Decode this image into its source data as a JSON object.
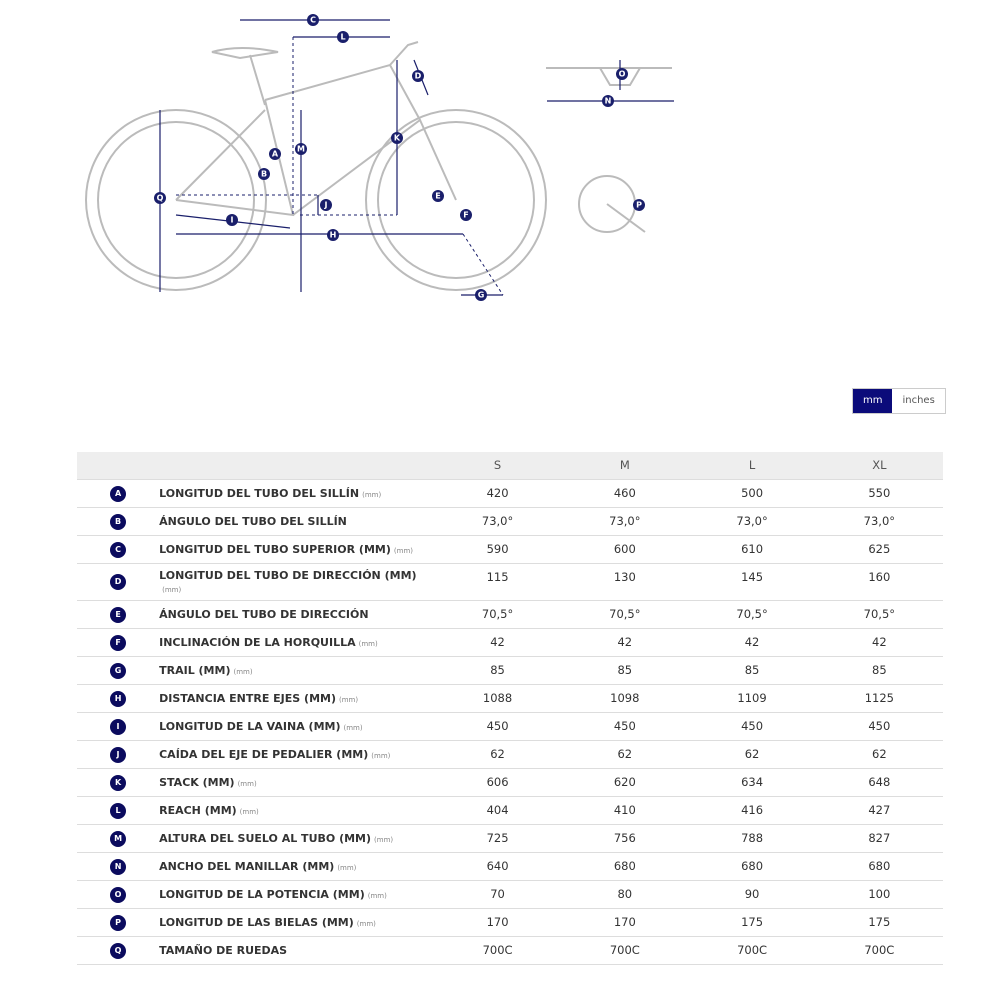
{
  "diagram": {
    "labels": [
      "C",
      "L",
      "D",
      "O",
      "N",
      "M",
      "K",
      "A",
      "B",
      "Q",
      "J",
      "E",
      "F",
      "I",
      "H",
      "G",
      "P"
    ]
  },
  "unit_toggle": {
    "options": [
      "mm",
      "inches"
    ],
    "selected": "mm"
  },
  "table": {
    "columns": [
      "S",
      "M",
      "L",
      "XL"
    ],
    "rows": [
      {
        "letter": "A",
        "name": "LONGITUD DEL TUBO DEL SILLÍN",
        "unit": "(mm)",
        "values": [
          "420",
          "460",
          "500",
          "550"
        ]
      },
      {
        "letter": "B",
        "name": "ÁNGULO DEL TUBO DEL SILLÍN",
        "values": [
          "73,0°",
          "73,0°",
          "73,0°",
          "73,0°"
        ]
      },
      {
        "letter": "C",
        "name": "LONGITUD DEL TUBO SUPERIOR (MM)",
        "unit": "(mm)",
        "values": [
          "590",
          "600",
          "610",
          "625"
        ]
      },
      {
        "letter": "D",
        "name": "LONGITUD DEL TUBO DE DIRECCIÓN (MM)",
        "unit": "(mm)",
        "values": [
          "115",
          "130",
          "145",
          "160"
        ]
      },
      {
        "letter": "E",
        "name": "ÁNGULO DEL TUBO DE DIRECCIÓN",
        "values": [
          "70,5°",
          "70,5°",
          "70,5°",
          "70,5°"
        ]
      },
      {
        "letter": "F",
        "name": "INCLINACIÓN DE LA HORQUILLA",
        "unit": "(mm)",
        "values": [
          "42",
          "42",
          "42",
          "42"
        ]
      },
      {
        "letter": "G",
        "name": "TRAIL (MM)",
        "unit": "(mm)",
        "values": [
          "85",
          "85",
          "85",
          "85"
        ]
      },
      {
        "letter": "H",
        "name": "DISTANCIA ENTRE EJES (MM)",
        "unit": "(mm)",
        "values": [
          "1088",
          "1098",
          "1109",
          "1125"
        ]
      },
      {
        "letter": "I",
        "name": "LONGITUD DE LA VAINA (MM)",
        "unit": "(mm)",
        "values": [
          "450",
          "450",
          "450",
          "450"
        ]
      },
      {
        "letter": "J",
        "name": "CAÍDA DEL EJE DE PEDALIER (MM)",
        "unit": "(mm)",
        "values": [
          "62",
          "62",
          "62",
          "62"
        ]
      },
      {
        "letter": "K",
        "name": "STACK (MM)",
        "unit": "(mm)",
        "values": [
          "606",
          "620",
          "634",
          "648"
        ]
      },
      {
        "letter": "L",
        "name": "REACH (MM)",
        "unit": "(mm)",
        "values": [
          "404",
          "410",
          "416",
          "427"
        ]
      },
      {
        "letter": "M",
        "name": "ALTURA DEL SUELO AL TUBO (MM)",
        "unit": "(mm)",
        "values": [
          "725",
          "756",
          "788",
          "827"
        ]
      },
      {
        "letter": "N",
        "name": "ANCHO DEL MANILLAR (MM)",
        "unit": "(mm)",
        "values": [
          "640",
          "680",
          "680",
          "680"
        ]
      },
      {
        "letter": "O",
        "name": "LONGITUD DE LA POTENCIA (MM)",
        "unit": "(mm)",
        "values": [
          "70",
          "80",
          "90",
          "100"
        ]
      },
      {
        "letter": "P",
        "name": "LONGITUD DE LAS BIELAS (MM)",
        "unit": "(mm)",
        "values": [
          "170",
          "170",
          "175",
          "175"
        ]
      },
      {
        "letter": "Q",
        "name": "TAMAÑO DE RUEDAS",
        "values": [
          "700C",
          "700C",
          "700C",
          "700C"
        ]
      }
    ]
  }
}
